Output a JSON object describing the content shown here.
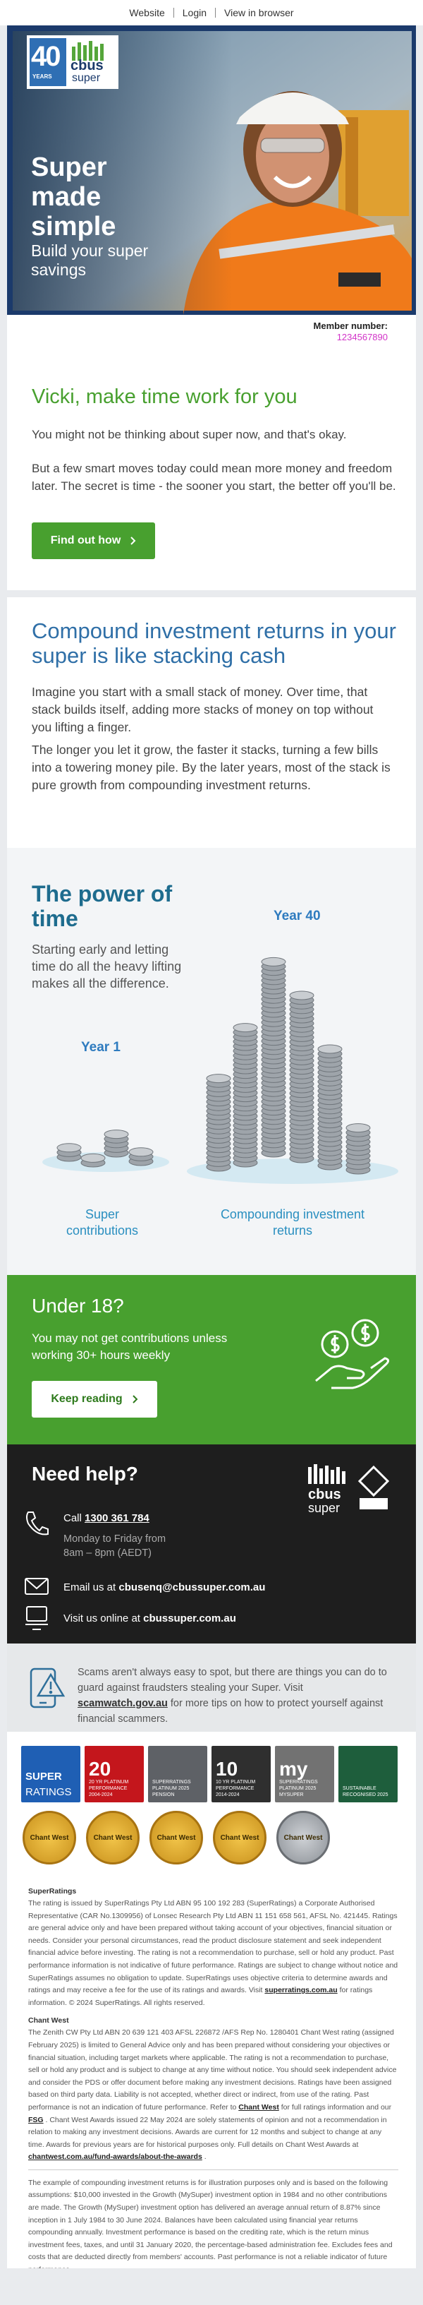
{
  "top_links": [
    "Website",
    "Login",
    "View in browser"
  ],
  "hero": {
    "logo_number": "40",
    "logo_years": "YEARS",
    "logo_brand": "cbus",
    "logo_sub": "super",
    "title": "Super made simple",
    "subtitle": "Build your super savings",
    "member_label": "Member number:",
    "member_number": "1234567890"
  },
  "intro": {
    "heading": "Vicki, make time work for you",
    "paragraphs": [
      "You might not be thinking about super now, and that's okay.",
      "But a few smart moves today could mean more money and freedom later. The secret is time - the sooner you start, the better off you'll be."
    ],
    "button": "Find out how"
  },
  "compound": {
    "heading": "Compound investment returns in your super is like stacking cash",
    "paragraphs": [
      "Imagine you start with a small stack of money. Over time, that stack builds itself, adding more stacks of money on top without you lifting a finger.",
      "The longer you let it grow, the faster it stacks, turning a few bills into a towering money pile. By the later years, most of the stack is pure growth from compounding investment returns."
    ]
  },
  "power": {
    "heading": "The power of time",
    "text": "Starting early and letting time do all the heavy lifting makes all the difference.",
    "year_start": "Year 1",
    "year_end": "Year 40",
    "label_left": "Super contributions",
    "label_right": "Compounding investment returns"
  },
  "under18": {
    "heading": "Under 18?",
    "text": "You may not get contributions unless working 30+ hours weekly",
    "button": "Keep reading"
  },
  "help": {
    "heading": "Need help?",
    "phone_prefix": "Call",
    "phone": "1300 361 784",
    "hours": "Monday to Friday from 8am – 8pm (AEDT)",
    "email_prefix": "Email us at",
    "email": "cbusenq@cbussuper.com.au",
    "web_prefix": "Visit us online at",
    "web": "cbussuper.com.au",
    "logo_brand": "cbus",
    "logo_sub": "super"
  },
  "scam": {
    "text": "Scams aren't always easy to spot, but there are things you can do to guard against fraudsters stealing your Super. Visit",
    "link": "scamwatch.gov.au",
    "text_after": "for more tips on how to protect yourself against financial scammers."
  },
  "badges": [
    {
      "big": "SUPER",
      "small": "RATINGS"
    },
    {
      "big": "20",
      "small": "20 YR PLATINUM PERFORMANCE 2004-2024"
    },
    {
      "big": "",
      "small": "SUPERRATINGS PLATINUM 2025 PENSION"
    },
    {
      "big": "10",
      "small": "10 YR PLATINUM PERFORMANCE 2014-2024"
    },
    {
      "big": "my",
      "small": "SUPERRATINGS PLATINUM 2025 MYSUPER"
    },
    {
      "big": "",
      "small": "SUSTAINABLE RECOGNISED 2025"
    }
  ],
  "medals": [
    "Chant West",
    "Chant West",
    "Chant West",
    "Chant West",
    "Chant West"
  ],
  "disclaimers": [
    {
      "heading": "SuperRatings",
      "parts": [
        {
          "text": "The rating is issued by SuperRatings Pty Ltd ABN 95 100 192 283 (SuperRatings) a Corporate Authorised Representative (CAR No.1309956) of Lonsec Research Pty Ltd ABN 11 151 658 561, AFSL No. 421445. Ratings are general advice only and have been prepared without taking account of your objectives, financial situation or needs. Consider your personal circumstances, read the product disclosure statement and seek independent financial advice before investing. The rating is not a recommendation to purchase, sell or hold any product. Past performance information is not indicative of future performance. Ratings are subject to change without notice and SuperRatings assumes no obligation to update. SuperRatings uses objective criteria to determine awards and ratings and may receive a fee for the use of its ratings and awards. Visit",
          "link": false
        },
        {
          "text": "superratings.com.au",
          "link": true
        },
        {
          "text": "for ratings information. © 2024 SuperRatings. All rights reserved.",
          "link": false
        }
      ]
    },
    {
      "heading": "Chant West",
      "parts": [
        {
          "text": "The Zenith CW Pty Ltd ABN 20 639 121 403 AFSL 226872 /AFS Rep No. 1280401 Chant West rating (assigned February 2025) is limited to General Advice only and has been prepared without considering your objectives or financial situation, including target markets where applicable. The rating is not a recommendation to purchase, sell or hold any product and is subject to change at any time without notice. You should seek independent advice and consider the PDS or offer document before making any investment decisions. Ratings have been assigned based on third party data. Liability is not accepted, whether direct or indirect, from use of the rating. Past performance is not an indication of future performance. Refer to",
          "link": false
        },
        {
          "text": "Chant West",
          "link": true
        },
        {
          "text": "for full ratings information and our",
          "link": false
        },
        {
          "text": "FSG",
          "link": true
        },
        {
          "text": ". Chant West Awards issued 22 May 2024 are solely statements of opinion and not a recommendation in relation to making any investment decisions. Awards are current for 12 months and subject to change at any time. Awards for previous years are for historical purposes only. Full details on Chant West Awards at",
          "link": false
        },
        {
          "text": "chantwest.com.au/fund-awards/about-the-awards",
          "link": true
        },
        {
          "text": ".",
          "link": false
        }
      ]
    },
    {
      "heading": "",
      "parts": [
        {
          "text": "The example of compounding investment returns is for illustration purposes only and is based on the following assumptions: $10,000 invested in the Growth (MySuper) investment option in 1984 and no other contributions are made. The Growth (MySuper) investment option has delivered an average annual return of 8.87% since inception in 1 July 1984 to 30 June 2024. Balances have been calculated using financial year returns compounding annually. Investment performance is based on the crediting rate, which is the return minus investment fees, taxes, and until 31 January 2020, the percentage-based administration fee. Excludes fees and costs that are deducted directly from members' accounts. Past performance is not a reliable indicator of future performance.",
          "link": false
        }
      ]
    }
  ]
}
